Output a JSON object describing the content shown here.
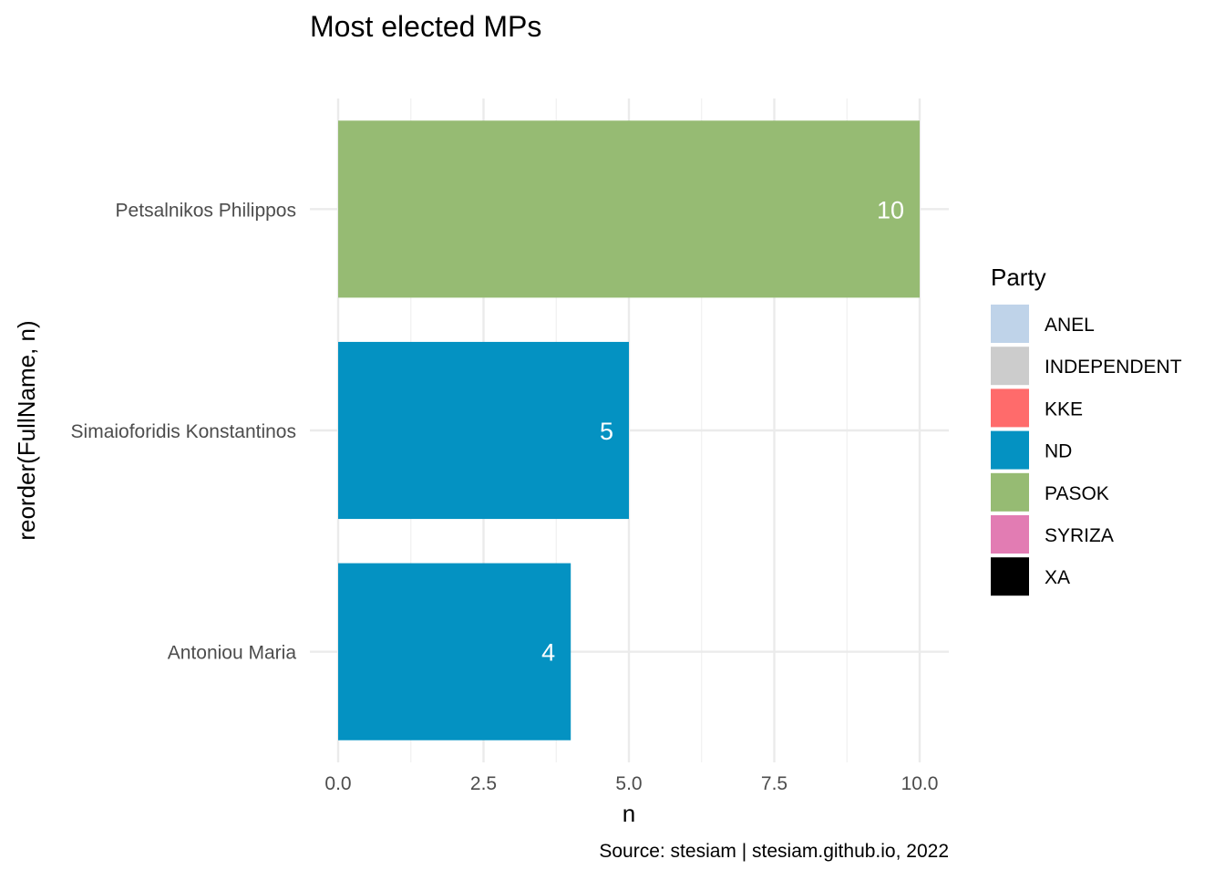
{
  "chart_data": {
    "type": "bar",
    "orientation": "horizontal",
    "title": "Most elected MPs",
    "xlabel": "n",
    "ylabel": "reorder(FullName, n)",
    "caption": "Source: stesiam | stesiam.github.io, 2022",
    "categories": [
      "Petsalnikos Philippos",
      "Simaioforidis Konstantinos",
      "Antoniou Maria"
    ],
    "values": [
      10,
      5,
      4
    ],
    "bar_parties": [
      "PASOK",
      "ND",
      "ND"
    ],
    "data_labels": [
      "10",
      "5",
      "4"
    ],
    "xlim": [
      0,
      10.5
    ],
    "xticks": [
      0.0,
      2.5,
      5.0,
      7.5,
      10.0
    ],
    "xtick_labels": [
      "0.0",
      "2.5",
      "5.0",
      "7.5",
      "10.0"
    ],
    "grid": true,
    "legend": {
      "title": "Party",
      "placement": "right",
      "entries": [
        {
          "name": "ANEL",
          "color": "#bfd3e9"
        },
        {
          "name": "INDEPENDENT",
          "color": "#cccccc"
        },
        {
          "name": "KKE",
          "color": "#ff6b6b"
        },
        {
          "name": "ND",
          "color": "#0492c2"
        },
        {
          "name": "PASOK",
          "color": "#96bb73"
        },
        {
          "name": "SYRIZA",
          "color": "#e27cb3"
        },
        {
          "name": "XA",
          "color": "#000000"
        }
      ]
    }
  }
}
